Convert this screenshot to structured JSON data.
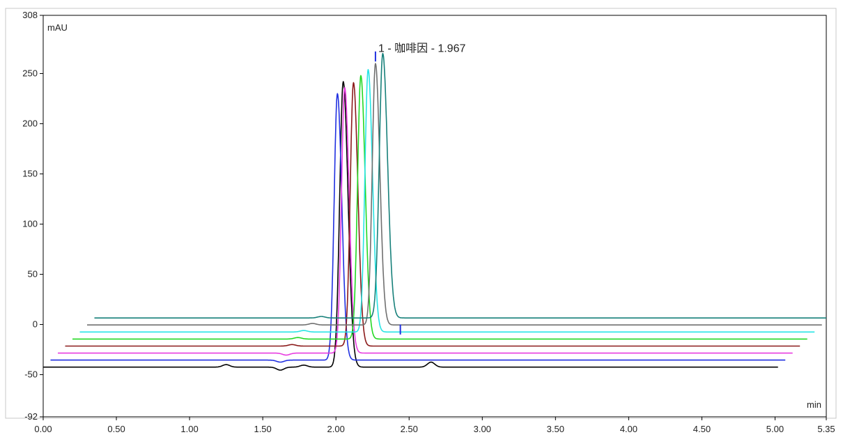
{
  "chart_data": {
    "type": "line",
    "title": "",
    "xlabel": "min",
    "ylabel": "mAU",
    "xlim": [
      0.0,
      5.35
    ],
    "ylim": [
      -92,
      308
    ],
    "x_ticks": [
      0.0,
      0.5,
      1.0,
      1.5,
      2.0,
      2.5,
      3.0,
      3.5,
      4.0,
      4.5,
      5.0,
      5.35
    ],
    "x_tick_labels": [
      "0.00",
      "0.50",
      "1.00",
      "1.50",
      "2.00",
      "2.50",
      "3.00",
      "3.50",
      "4.00",
      "4.50",
      "5.00",
      "5.35"
    ],
    "y_ticks": [
      -92,
      -50,
      0,
      50,
      100,
      150,
      200,
      250,
      308
    ],
    "y_tick_labels": [
      "-92",
      "-50",
      "0",
      "50",
      "100",
      "150",
      "200",
      "250",
      "308"
    ],
    "grid": false,
    "legend": "none",
    "annotation": {
      "text": "1 - 咖啡因 - 1.967",
      "x": 2.28,
      "y": 270
    },
    "series": [
      {
        "color": "#000000",
        "x_start": 0.0,
        "x_end": 5.02,
        "baseline": -42.5,
        "peak_x": 2.05,
        "peak_y": 242,
        "width": 0.024,
        "bumps": [
          [
            1.25,
            2.5
          ],
          [
            1.62,
            -3
          ],
          [
            1.78,
            2
          ],
          [
            2.65,
            5
          ]
        ]
      },
      {
        "color": "#1f2fe0",
        "x_start": 0.05,
        "x_end": 5.07,
        "baseline": -35.5,
        "peak_x": 2.01,
        "peak_y": 230,
        "width": 0.022,
        "bumps": [
          [
            1.62,
            -2
          ]
        ]
      },
      {
        "color": "#e83ce0",
        "x_start": 0.1,
        "x_end": 5.12,
        "baseline": -28.5,
        "peak_x": 2.06,
        "peak_y": 236,
        "width": 0.022,
        "bumps": [
          [
            1.66,
            -2
          ]
        ]
      },
      {
        "color": "#8b1a1a",
        "x_start": 0.15,
        "x_end": 5.17,
        "baseline": -21.5,
        "peak_x": 2.12,
        "peak_y": 241,
        "width": 0.022,
        "bumps": [
          [
            1.7,
            1.5
          ]
        ]
      },
      {
        "color": "#22d822",
        "x_start": 0.2,
        "x_end": 5.22,
        "baseline": -14.5,
        "peak_x": 2.17,
        "peak_y": 248,
        "width": 0.022,
        "bumps": [
          [
            1.74,
            1.5
          ]
        ]
      },
      {
        "color": "#27e4e4",
        "x_start": 0.25,
        "x_end": 5.27,
        "baseline": -7.5,
        "peak_x": 2.22,
        "peak_y": 254,
        "width": 0.022,
        "bumps": [
          [
            1.78,
            1.5
          ]
        ]
      },
      {
        "color": "#707070",
        "x_start": 0.3,
        "x_end": 5.32,
        "baseline": -0.5,
        "peak_x": 2.27,
        "peak_y": 260,
        "width": 0.022,
        "bumps": [
          [
            1.84,
            1.5
          ]
        ]
      },
      {
        "color": "#17807a",
        "x_start": 0.35,
        "x_end": 5.35,
        "baseline": 6.5,
        "peak_x": 2.32,
        "peak_y": 270,
        "width": 0.024,
        "bumps": [
          [
            1.9,
            1.5
          ]
        ]
      }
    ],
    "markers": [
      {
        "color": "#1f2fe0",
        "x": 2.27,
        "y_from": 262,
        "y_to": 272
      },
      {
        "color": "#1f2fe0",
        "x": 2.44,
        "y_from": -10,
        "y_to": 0
      }
    ]
  }
}
